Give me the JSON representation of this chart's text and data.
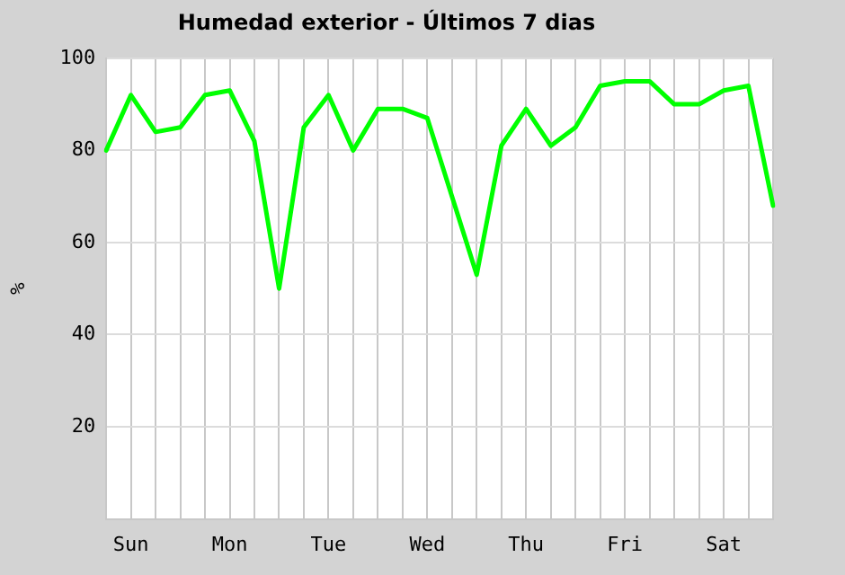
{
  "chart_data": {
    "type": "line",
    "title": "Humedad exterior - Últimos 7 dias",
    "ylabel": "%",
    "categories": [
      null,
      "Sun",
      null,
      null,
      null,
      "Mon",
      null,
      null,
      null,
      "Tue",
      null,
      null,
      null,
      "Wed",
      null,
      null,
      null,
      "Thu",
      null,
      null,
      null,
      "Fri",
      null,
      null,
      null,
      "Sat",
      null,
      null
    ],
    "series": [
      {
        "color": "#00ff00",
        "values": [
          80,
          92,
          84,
          85,
          92,
          93,
          82,
          50,
          85,
          92,
          80,
          89,
          89,
          87,
          70,
          53,
          81,
          89,
          81,
          85,
          94,
          95,
          95,
          90,
          90,
          93,
          94,
          68
        ]
      }
    ],
    "ylim": [
      0,
      100
    ],
    "yticks": [
      20,
      40,
      60,
      80,
      100
    ],
    "grid": true,
    "legend": false,
    "marker": "none",
    "line_style": "solid"
  }
}
